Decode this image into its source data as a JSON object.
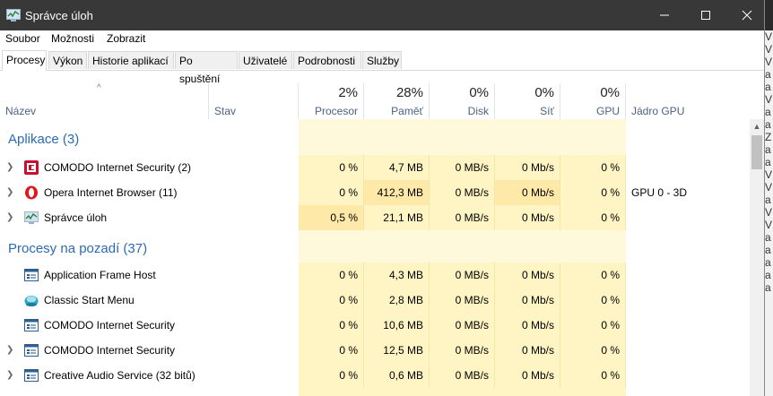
{
  "window": {
    "title": "Správce úloh"
  },
  "menu": [
    "Soubor",
    "Možnosti",
    "Zobrazit"
  ],
  "tabs": [
    "Procesy",
    "Výkon",
    "Historie aplikací",
    "Po spuštění",
    "Uživatelé",
    "Podrobnosti",
    "Služby"
  ],
  "header": {
    "name": "Název",
    "status": "Stav",
    "cpu_pct": "2%",
    "cpu_label": "Procesor",
    "mem_pct": "28%",
    "mem_label": "Paměť",
    "disk_pct": "0%",
    "disk_label": "Disk",
    "net_pct": "0%",
    "net_label": "Síť",
    "gpu_pct": "0%",
    "gpu_label": "GPU",
    "gpu_engine_label": "Jádro GPU"
  },
  "groups": {
    "apps": "Aplikace (3)",
    "background": "Procesy na pozadí (37)"
  },
  "apps": [
    {
      "name": "COMODO Internet Security (2)",
      "icon": "comodo-icon",
      "cpu": "0 %",
      "mem": "4,7 MB",
      "disk": "0 MB/s",
      "net": "0 Mb/s",
      "gpu": "0 %",
      "engine": ""
    },
    {
      "name": "Opera Internet Browser (11)",
      "icon": "opera-icon",
      "cpu": "0 %",
      "mem": "412,3 MB",
      "disk": "0 MB/s",
      "net": "0 Mb/s",
      "gpu": "0 %",
      "engine": "GPU 0 - 3D"
    },
    {
      "name": "Správce úloh",
      "icon": "task-manager-icon",
      "cpu": "0,5 %",
      "mem": "21,1 MB",
      "disk": "0 MB/s",
      "net": "0 Mb/s",
      "gpu": "0 %",
      "engine": ""
    }
  ],
  "background": [
    {
      "name": "Application Frame Host",
      "icon": "window-icon",
      "cpu": "0 %",
      "mem": "4,3 MB",
      "disk": "0 MB/s",
      "net": "0 Mb/s",
      "gpu": "0 %"
    },
    {
      "name": "Classic Start Menu",
      "icon": "shell-icon",
      "cpu": "0 %",
      "mem": "2,8 MB",
      "disk": "0 MB/s",
      "net": "0 Mb/s",
      "gpu": "0 %"
    },
    {
      "name": "COMODO Internet Security",
      "icon": "window-icon",
      "cpu": "0 %",
      "mem": "10,6 MB",
      "disk": "0 MB/s",
      "net": "0 Mb/s",
      "gpu": "0 %"
    },
    {
      "name": "COMODO Internet Security",
      "icon": "window-icon",
      "cpu": "0 %",
      "mem": "12,5 MB",
      "disk": "0 MB/s",
      "net": "0 Mb/s",
      "gpu": "0 %"
    },
    {
      "name": "Creative Audio Service (32 bitů)",
      "icon": "window-icon",
      "cpu": "0 %",
      "mem": "0,6 MB",
      "disk": "0 MB/s",
      "net": "0 Mb/s",
      "gpu": "0 %"
    }
  ],
  "colors": {
    "heat_light": "#fff4c4",
    "heat_medium": "#ffe9a8",
    "heat_strong": "#ffd98a",
    "group_title": "#2b6bb3",
    "titlebar": "#383838"
  },
  "right_strip_text": [
    "V",
    "V",
    "V",
    "a",
    "a",
    "V",
    "a",
    "a",
    "Z",
    "a",
    "a",
    "V",
    "V",
    "a",
    "V",
    "V",
    "a",
    "a",
    "a",
    "a",
    "a"
  ]
}
